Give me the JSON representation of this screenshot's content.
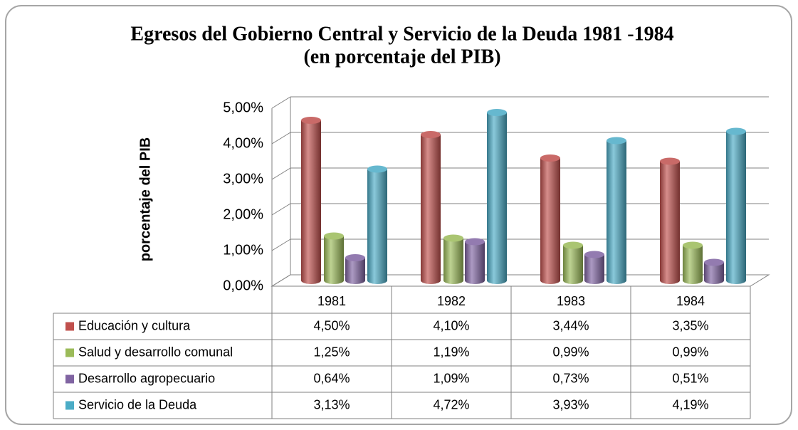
{
  "chart_data": {
    "type": "bar",
    "title": "Egresos del Gobierno Central y Servicio de la Deuda  1981 -1984",
    "subtitle": "(en porcentaje del PIB)",
    "y_label": "porcentaje del PIB",
    "categories": [
      "1981",
      "1982",
      "1983",
      "1984"
    ],
    "series": [
      {
        "name": "Educación y cultura",
        "color": "#c0504d",
        "values": [
          4.5,
          4.1,
          3.44,
          3.35
        ],
        "value_labels": [
          "4,50%",
          "4,10%",
          "3,44%",
          "3,35%"
        ]
      },
      {
        "name": "Salud y desarrollo comunal",
        "color": "#9bbb59",
        "values": [
          1.25,
          1.19,
          0.99,
          0.99
        ],
        "value_labels": [
          "1,25%",
          "1,19%",
          "0,99%",
          "0,99%"
        ]
      },
      {
        "name": "Desarrollo agropecuario",
        "color": "#8064a2",
        "values": [
          0.64,
          1.09,
          0.73,
          0.51
        ],
        "value_labels": [
          "0,64%",
          "1,09%",
          "0,73%",
          "0,51%"
        ]
      },
      {
        "name": "Servicio de la Deuda",
        "color": "#4bacc6",
        "values": [
          3.13,
          4.72,
          3.93,
          4.19
        ],
        "value_labels": [
          "3,13%",
          "4,72%",
          "3,93%",
          "4,19%"
        ]
      }
    ],
    "ylim": [
      0,
      5
    ],
    "yticks": [
      {
        "value": 0,
        "label": "0,00%"
      },
      {
        "value": 1,
        "label": "1,00%"
      },
      {
        "value": 2,
        "label": "2,00%"
      },
      {
        "value": 3,
        "label": "3,00%"
      },
      {
        "value": 4,
        "label": "4,00%"
      },
      {
        "value": 5,
        "label": "5,00%"
      }
    ],
    "grid": true,
    "legend": "table"
  }
}
